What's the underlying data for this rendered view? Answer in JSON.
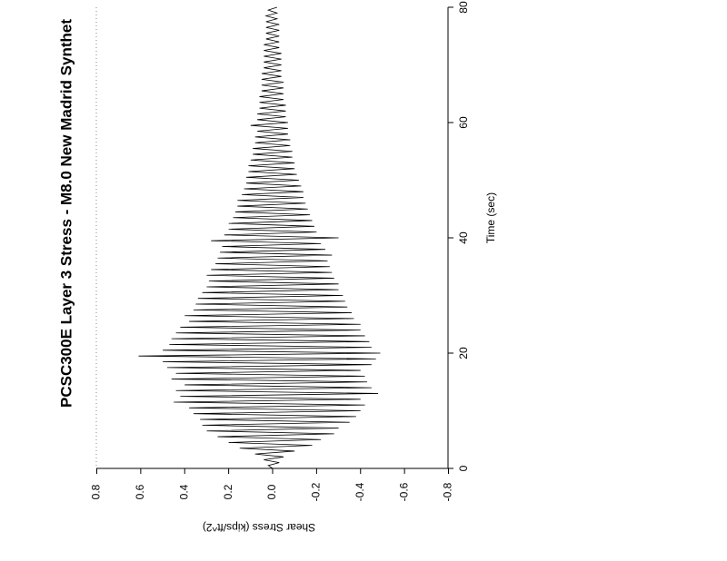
{
  "chart_data": {
    "type": "line",
    "title": "PCSC300E Layer 3 Stress - M8.0 New Madrid Synthet",
    "x_label": "Time (sec)",
    "y_label": "Shear Stress (kips/ft^2)",
    "color": "#000000",
    "xlim": [
      0,
      80
    ],
    "xticks": [
      0,
      20,
      40,
      60,
      80
    ],
    "ylim": [
      -0.8,
      0.8
    ],
    "yticks": [
      0.8,
      0.6,
      0.4,
      0.2,
      {
        "value": 0,
        "label": "0.0"
      },
      -0.2,
      -0.4,
      -0.6,
      -0.8
    ],
    "x": [
      0,
      0.5,
      1,
      1.5,
      2,
      2.5,
      3,
      3.5,
      4,
      4.5,
      5,
      5.5,
      6,
      6.5,
      7,
      7.5,
      8,
      8.5,
      9,
      9.5,
      10,
      10.5,
      11,
      11.5,
      12,
      12.5,
      13,
      13.5,
      14,
      14.5,
      15,
      15.5,
      16,
      16.5,
      17,
      17.5,
      18,
      18.5,
      19,
      19.5,
      20,
      20.5,
      21,
      21.5,
      22,
      22.5,
      23,
      23.5,
      24,
      24.5,
      25,
      25.5,
      26,
      26.5,
      27,
      27.5,
      28,
      28.5,
      29,
      29.5,
      30,
      30.5,
      31,
      31.5,
      32,
      32.5,
      33,
      33.5,
      34,
      34.5,
      35,
      35.5,
      36,
      36.5,
      37,
      37.5,
      38,
      38.5,
      39,
      39.5,
      40,
      40.5,
      41,
      41.5,
      42,
      42.5,
      43,
      43.5,
      44,
      44.5,
      45,
      45.5,
      46,
      46.5,
      47,
      47.5,
      48,
      48.5,
      49,
      49.5,
      50,
      50.5,
      51,
      51.5,
      52,
      52.5,
      53,
      53.5,
      54,
      54.5,
      55,
      55.5,
      56,
      56.5,
      57,
      57.5,
      58,
      58.5,
      59,
      59.5,
      60,
      60.5,
      61,
      61.5,
      62,
      62.5,
      63,
      63.5,
      64,
      64.5,
      65,
      65.5,
      66,
      66.5,
      67,
      67.5,
      68,
      68.5,
      69,
      69.5,
      70,
      70.5,
      71,
      71.5,
      72,
      72.5,
      73,
      73.5,
      74,
      74.5,
      75,
      75.5,
      76,
      76.5,
      77,
      77.5,
      78,
      78.5,
      79,
      79.5,
      80
    ],
    "values": [
      0,
      0.02,
      -0.03,
      0.04,
      -0.05,
      0.08,
      -0.1,
      0.15,
      -0.18,
      0.2,
      -0.22,
      0.25,
      -0.28,
      0.3,
      -0.3,
      0.32,
      -0.35,
      0.33,
      -0.38,
      0.36,
      -0.4,
      0.38,
      -0.42,
      0.45,
      -0.4,
      0.42,
      -0.48,
      0.44,
      -0.45,
      0.4,
      -0.43,
      0.46,
      -0.42,
      0.44,
      -0.4,
      0.48,
      -0.45,
      0.5,
      -0.47,
      0.61,
      -0.49,
      0.5,
      -0.45,
      0.47,
      -0.44,
      0.46,
      -0.42,
      0.44,
      -0.4,
      0.42,
      -0.4,
      0.38,
      -0.37,
      0.4,
      -0.36,
      0.36,
      -0.34,
      0.35,
      -0.33,
      0.34,
      -0.32,
      0.32,
      -0.3,
      0.3,
      -0.3,
      0.29,
      -0.28,
      0.3,
      -0.27,
      0.28,
      -0.26,
      0.26,
      -0.25,
      0.25,
      -0.27,
      0.24,
      -0.24,
      0.23,
      -0.22,
      0.28,
      -0.3,
      0.22,
      -0.2,
      0.2,
      -0.19,
      0.2,
      -0.18,
      0.18,
      -0.17,
      0.17,
      -0.16,
      0.16,
      -0.15,
      0.16,
      -0.14,
      0.14,
      -0.14,
      0.13,
      -0.13,
      0.12,
      -0.12,
      0.12,
      -0.11,
      0.11,
      -0.1,
      0.11,
      -0.1,
      0.1,
      -0.09,
      0.09,
      -0.09,
      0.09,
      -0.08,
      0.08,
      -0.08,
      0.08,
      -0.07,
      0.07,
      -0.07,
      0.1,
      -0.07,
      0.07,
      -0.06,
      0.07,
      -0.06,
      0.06,
      -0.06,
      0.06,
      -0.05,
      0.06,
      -0.05,
      0.05,
      -0.05,
      0.05,
      -0.05,
      0.05,
      -0.04,
      0.05,
      -0.04,
      0.04,
      -0.04,
      0.04,
      -0.04,
      0.04,
      -0.04,
      0.04,
      -0.03,
      0.04,
      -0.03,
      0.03,
      -0.03,
      0.03,
      -0.03,
      0.03,
      -0.03,
      0.03,
      -0.02,
      0.03,
      -0.02,
      0.02,
      -0.02
    ]
  }
}
